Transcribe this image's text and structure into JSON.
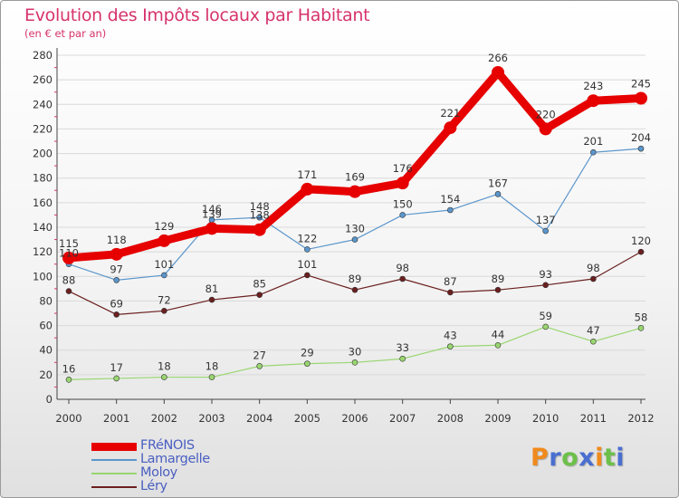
{
  "chart_data": {
    "type": "line",
    "title": "Evolution des Impôts locaux par Habitant",
    "subtitle": "(en € et par an)",
    "categories": [
      "2000",
      "2001",
      "2002",
      "2003",
      "2004",
      "2005",
      "2006",
      "2007",
      "2008",
      "2009",
      "2010",
      "2011",
      "2012"
    ],
    "ylim": [
      0,
      280
    ],
    "yticks": [
      0,
      20,
      40,
      60,
      80,
      100,
      120,
      140,
      160,
      180,
      200,
      220,
      240,
      260,
      280
    ],
    "grid": true,
    "legend_position": "bottom-left",
    "series": [
      {
        "name": "FRéNOIS",
        "color": "#e60000",
        "values": [
          115,
          118,
          129,
          139,
          138,
          171,
          169,
          176,
          221,
          266,
          220,
          243,
          245
        ]
      },
      {
        "name": "Lamargelle",
        "color": "#5b96cc",
        "values": [
          110,
          97,
          101,
          146,
          148,
          122,
          130,
          150,
          154,
          167,
          137,
          201,
          204
        ]
      },
      {
        "name": "Moloy",
        "color": "#99d670",
        "values": [
          16,
          17,
          18,
          18,
          27,
          29,
          30,
          33,
          43,
          44,
          59,
          47,
          58
        ]
      },
      {
        "name": "Léry",
        "color": "#6b1f1f",
        "values": [
          88,
          69,
          72,
          81,
          85,
          101,
          89,
          98,
          87,
          89,
          93,
          98,
          120
        ]
      }
    ]
  },
  "logo": {
    "text": "Proxiti",
    "colors": [
      "#f08a1c",
      "#4a6fd1",
      "#6cc04a",
      "#4a6fd1",
      "#f08a1c",
      "#6cc04a",
      "#4a6fd1"
    ]
  }
}
